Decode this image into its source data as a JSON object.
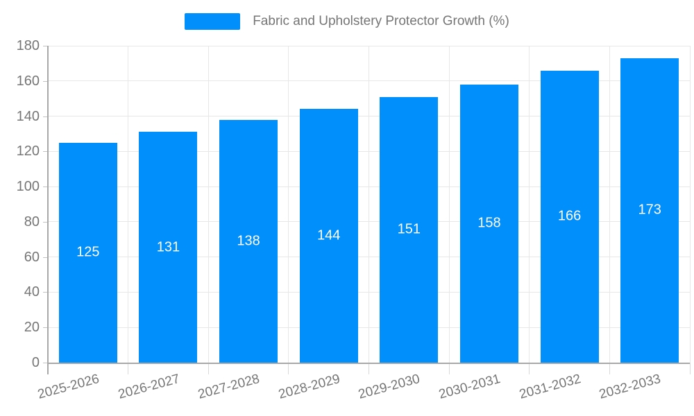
{
  "chart_data": {
    "type": "bar",
    "title": "Fabric and Upholstery Protector Growth (%)",
    "categories": [
      "2025-2026",
      "2026-2027",
      "2027-2028",
      "2028-2029",
      "2029-2030",
      "2030-2031",
      "2031-2032",
      "2032-2033"
    ],
    "values": [
      125,
      131,
      138,
      144,
      151,
      158,
      166,
      173
    ],
    "xlabel": "",
    "ylabel": "",
    "ylim": [
      0,
      180
    ],
    "yticks": [
      0,
      20,
      40,
      60,
      80,
      100,
      120,
      140,
      160,
      180
    ],
    "grid": true,
    "legend_position": "top",
    "bar_value_labels_shown": true,
    "x_label_rotation_deg": -15
  },
  "legend": {
    "label": "Fabric and Upholstery Protector Growth (%)"
  },
  "colors": {
    "bar": "#008FFB",
    "bar_label": "#ffffff",
    "axis_text": "#757575",
    "legend_text": "#757575",
    "gridline": "#e7e7e7",
    "axis_line": "#a8a8a8",
    "y_tick": "#c2c2c2",
    "x_tick": "#d9d9d9",
    "background": "#ffffff"
  }
}
